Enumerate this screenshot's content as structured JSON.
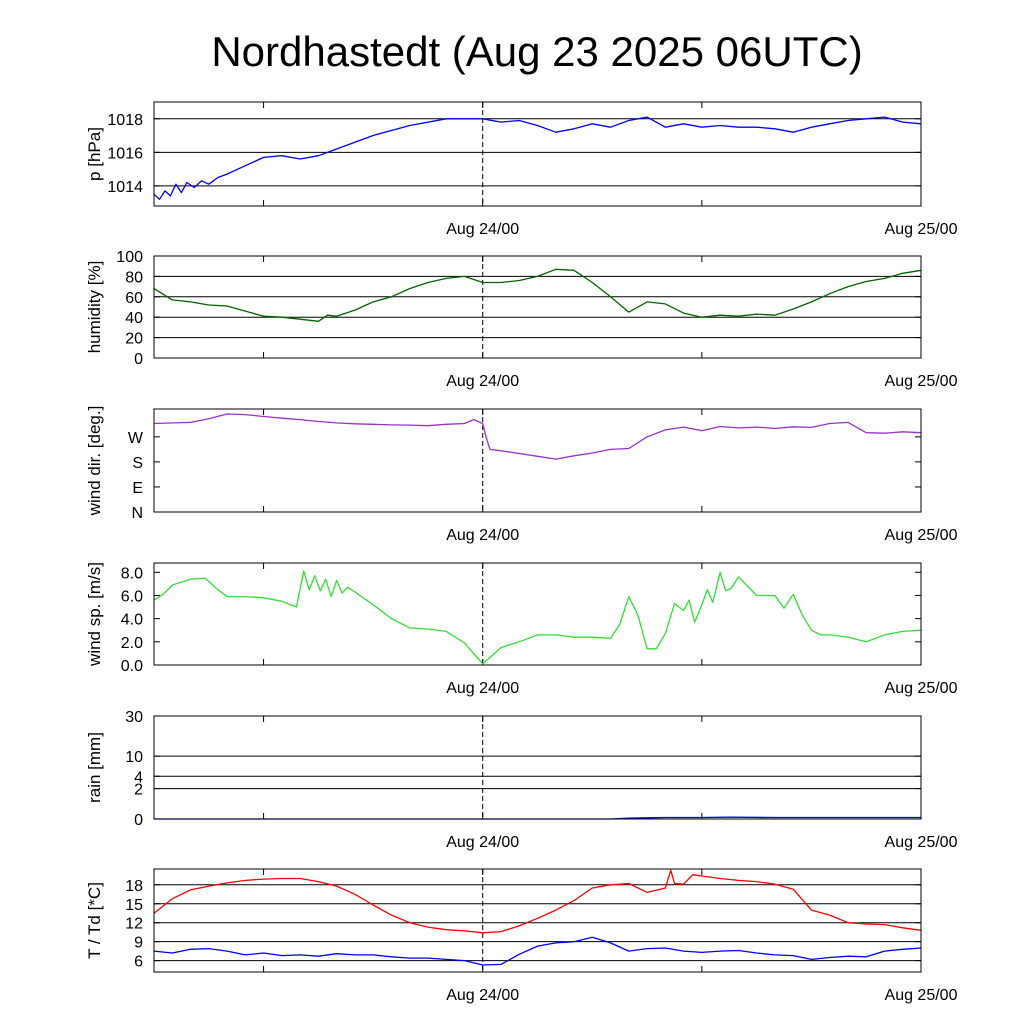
{
  "title": "Nordhastedt (Aug 23 2025 06UTC)",
  "x_axis": {
    "range_hours": [
      0,
      42
    ],
    "ticks": [
      {
        "hour": 18,
        "label": "Aug 24/00"
      },
      {
        "hour": 42,
        "label": "Aug 25/00"
      }
    ],
    "minor_ticks": [
      6,
      30
    ],
    "marker_hour": 18
  },
  "chart_data": [
    {
      "type": "line",
      "id": "pressure",
      "ylabel": "p [hPa]",
      "ylim": [
        1012.8,
        1019
      ],
      "yticks": [
        {
          "value": 1014,
          "label": "1014"
        },
        {
          "value": 1016,
          "label": "1016"
        },
        {
          "value": 1018,
          "label": "1018"
        }
      ],
      "grid": true,
      "series": [
        {
          "color": "#0000ff",
          "x": [
            0,
            0.3,
            0.6,
            0.9,
            1.2,
            1.5,
            1.8,
            2.2,
            2.6,
            3.0,
            3.5,
            4.0,
            5.0,
            6.0,
            7.0,
            8.0,
            9.0,
            10.0,
            12.0,
            14.0,
            16.0,
            18.0,
            19.0,
            20.0,
            21.0,
            22.0,
            23.0,
            24.0,
            25.0,
            26.0,
            27.0,
            28.0,
            29.0,
            30.0,
            31.0,
            32.0,
            33.0,
            34.0,
            35.0,
            36.0,
            37.0,
            38.0,
            39.0,
            40.0,
            41.0,
            42.0
          ],
          "y": [
            1013.5,
            1013.2,
            1013.7,
            1013.4,
            1014.1,
            1013.6,
            1014.2,
            1013.9,
            1014.3,
            1014.1,
            1014.5,
            1014.7,
            1015.2,
            1015.7,
            1015.8,
            1015.6,
            1015.8,
            1016.2,
            1017.0,
            1017.6,
            1018.0,
            1018.0,
            1017.8,
            1017.9,
            1017.6,
            1017.2,
            1017.4,
            1017.7,
            1017.5,
            1017.9,
            1018.1,
            1017.5,
            1017.7,
            1017.5,
            1017.6,
            1017.5,
            1017.5,
            1017.4,
            1017.2,
            1017.5,
            1017.7,
            1017.9,
            1018.0,
            1018.1,
            1017.8,
            1017.7
          ]
        }
      ]
    },
    {
      "type": "line",
      "id": "humidity",
      "ylabel": "humidity [%]",
      "ylim": [
        0,
        100
      ],
      "yticks": [
        {
          "value": 0,
          "label": "0"
        },
        {
          "value": 20,
          "label": "20"
        },
        {
          "value": 40,
          "label": "40"
        },
        {
          "value": 60,
          "label": "60"
        },
        {
          "value": 80,
          "label": "80"
        },
        {
          "value": 100,
          "label": "100"
        }
      ],
      "grid": true,
      "series": [
        {
          "color": "#006400",
          "x": [
            0,
            1,
            2,
            3,
            4,
            5,
            6,
            7,
            8,
            9,
            9.5,
            10,
            11,
            12,
            13,
            14,
            15,
            16,
            17,
            18,
            19,
            20,
            21,
            22,
            23,
            24,
            25,
            26,
            27,
            28,
            29,
            30,
            31,
            32,
            33,
            34,
            35,
            36,
            37,
            38,
            39,
            40,
            41,
            42
          ],
          "y": [
            68,
            57,
            55,
            52,
            51,
            46,
            41,
            40,
            38,
            36,
            42,
            41,
            47,
            55,
            60,
            68,
            74,
            78,
            80,
            74,
            74,
            76,
            80,
            87,
            86,
            74,
            60,
            45,
            55,
            53,
            44,
            40,
            42,
            41,
            43,
            42,
            48,
            55,
            63,
            70,
            75,
            78,
            83,
            86
          ]
        }
      ]
    },
    {
      "type": "line",
      "id": "wind_direction",
      "ylabel": "wind dir. [deg.]",
      "ylim": [
        0,
        370
      ],
      "yticks": [
        {
          "value": 0,
          "label": "N"
        },
        {
          "value": 90,
          "label": "E"
        },
        {
          "value": 180,
          "label": "S"
        },
        {
          "value": 270,
          "label": "W"
        }
      ],
      "grid": false,
      "series": [
        {
          "color": "#9932cc",
          "x": [
            0,
            2,
            3,
            4,
            5,
            6,
            7,
            8,
            9,
            10,
            11,
            12,
            13,
            14,
            15,
            16,
            17,
            17.5,
            18,
            18.2,
            18.4,
            19,
            20,
            21,
            22,
            23,
            24,
            25,
            26,
            27,
            28,
            29,
            30,
            31,
            32,
            33,
            34,
            35,
            36,
            37,
            38,
            39,
            40,
            41,
            42
          ],
          "y": [
            318,
            322,
            335,
            352,
            350,
            343,
            337,
            332,
            325,
            320,
            317,
            315,
            313,
            312,
            310,
            315,
            318,
            332,
            318,
            265,
            225,
            220,
            210,
            200,
            190,
            202,
            212,
            225,
            228,
            270,
            295,
            305,
            292,
            307,
            302,
            305,
            300,
            306,
            304,
            318,
            322,
            285,
            283,
            288,
            285
          ]
        }
      ]
    },
    {
      "type": "line",
      "id": "wind_speed",
      "ylabel": "wind sp. [m/s]",
      "ylim": [
        0,
        8.8
      ],
      "yticks": [
        {
          "value": 0,
          "label": "0.0"
        },
        {
          "value": 2,
          "label": "2.0"
        },
        {
          "value": 4,
          "label": "4.0"
        },
        {
          "value": 6,
          "label": "6.0"
        },
        {
          "value": 8,
          "label": "8.0"
        }
      ],
      "grid": false,
      "series": [
        {
          "color": "#33dd33",
          "x": [
            0,
            0.5,
            1,
            2,
            2.8,
            3.5,
            4,
            5,
            6,
            7,
            7.8,
            8.2,
            8.5,
            8.8,
            9.1,
            9.4,
            9.7,
            10.0,
            10.3,
            10.6,
            11,
            12,
            13,
            14,
            15,
            16,
            17,
            17.5,
            18,
            19,
            20,
            21,
            22,
            23,
            24,
            25,
            25.5,
            26,
            26.5,
            27,
            27.5,
            28,
            28.5,
            29,
            29.3,
            29.6,
            30,
            30.3,
            30.6,
            31,
            31.3,
            31.6,
            32,
            33,
            34,
            34.5,
            35,
            35.5,
            36,
            36.5,
            37,
            38,
            39,
            40,
            41,
            42
          ],
          "y": [
            5.6,
            6.1,
            6.9,
            7.4,
            7.5,
            6.5,
            5.9,
            5.9,
            5.8,
            5.5,
            5.0,
            8.1,
            6.5,
            7.7,
            6.4,
            7.4,
            5.9,
            7.3,
            6.2,
            6.7,
            6.3,
            5.2,
            4.0,
            3.2,
            3.1,
            2.9,
            1.9,
            1.0,
            0.1,
            1.5,
            2.0,
            2.6,
            2.6,
            2.4,
            2.4,
            2.3,
            3.5,
            5.9,
            4.3,
            1.4,
            1.4,
            2.7,
            5.3,
            4.7,
            5.6,
            3.7,
            5.2,
            6.5,
            5.4,
            8.0,
            6.4,
            6.6,
            7.6,
            6.0,
            6.0,
            4.9,
            6.1,
            4.3,
            3.0,
            2.6,
            2.6,
            2.4,
            2.0,
            2.6,
            2.9,
            3.0
          ]
        }
      ]
    },
    {
      "type": "line",
      "id": "rain",
      "ylabel": "rain [mm]",
      "ylim": [
        0,
        31
      ],
      "yticks": [
        {
          "value": 0,
          "label": "0"
        },
        {
          "value": 2,
          "label": "2"
        },
        {
          "value": 4,
          "label": "4"
        },
        {
          "value": 10,
          "label": "10"
        },
        {
          "value": 30,
          "label": "30"
        }
      ],
      "grid": true,
      "series": [
        {
          "color": "#0000ff",
          "x": [
            0,
            25,
            26,
            27,
            28,
            30,
            31.5,
            34,
            38,
            42
          ],
          "y": [
            0,
            0,
            0.05,
            0.08,
            0.1,
            0.1,
            0.12,
            0.1,
            0.1,
            0.1
          ]
        }
      ]
    },
    {
      "type": "line",
      "id": "temperature",
      "ylabel": "T / Td [*C]",
      "ylim": [
        4.2,
        20.5
      ],
      "yticks": [
        {
          "value": 6,
          "label": "6"
        },
        {
          "value": 9,
          "label": "9"
        },
        {
          "value": 12,
          "label": "12"
        },
        {
          "value": 15,
          "label": "15"
        },
        {
          "value": 18,
          "label": "18"
        }
      ],
      "grid": true,
      "series": [
        {
          "color": "#ff0000",
          "x": [
            0,
            1,
            2,
            3,
            4,
            5,
            6,
            7,
            8,
            9,
            10,
            11,
            12,
            13,
            14,
            15,
            16,
            17,
            18,
            19,
            20,
            21,
            22,
            23,
            24,
            25,
            26,
            27,
            28,
            28.3,
            28.5,
            29,
            29.5,
            30,
            31,
            32,
            33,
            34,
            35,
            36,
            37,
            38,
            39,
            40,
            41,
            42
          ],
          "y": [
            13.5,
            15.8,
            17.2,
            17.8,
            18.3,
            18.7,
            18.9,
            19.0,
            19.0,
            18.5,
            17.8,
            16.5,
            14.8,
            13.2,
            12.0,
            11.3,
            10.9,
            10.7,
            10.4,
            10.6,
            11.5,
            12.7,
            14.0,
            15.5,
            17.5,
            18.0,
            18.2,
            16.8,
            17.5,
            20.3,
            18.2,
            18.1,
            19.6,
            19.4,
            19.0,
            18.7,
            18.5,
            18.1,
            17.3,
            14.0,
            13.2,
            12.0,
            11.8,
            11.7,
            11.2,
            10.8
          ]
        },
        {
          "color": "#0000ff",
          "x": [
            0,
            1,
            2,
            3,
            4,
            5,
            6,
            7,
            8,
            9,
            10,
            11,
            12,
            13,
            14,
            15,
            16,
            17,
            18,
            19,
            20,
            21,
            22,
            23,
            24,
            25,
            26,
            27,
            28,
            29,
            30,
            31,
            32,
            33,
            34,
            35,
            36,
            37,
            38,
            39,
            40,
            41,
            42
          ],
          "y": [
            7.5,
            7.2,
            7.8,
            7.9,
            7.5,
            6.9,
            7.2,
            6.8,
            6.9,
            6.7,
            7.1,
            6.9,
            6.9,
            6.6,
            6.4,
            6.4,
            6.2,
            6.0,
            5.3,
            5.4,
            7.0,
            8.3,
            8.8,
            9.0,
            9.7,
            8.8,
            7.5,
            7.9,
            8.0,
            7.5,
            7.3,
            7.5,
            7.6,
            7.2,
            6.9,
            6.8,
            6.2,
            6.5,
            6.7,
            6.6,
            7.5,
            7.8,
            8.0
          ]
        }
      ]
    }
  ]
}
